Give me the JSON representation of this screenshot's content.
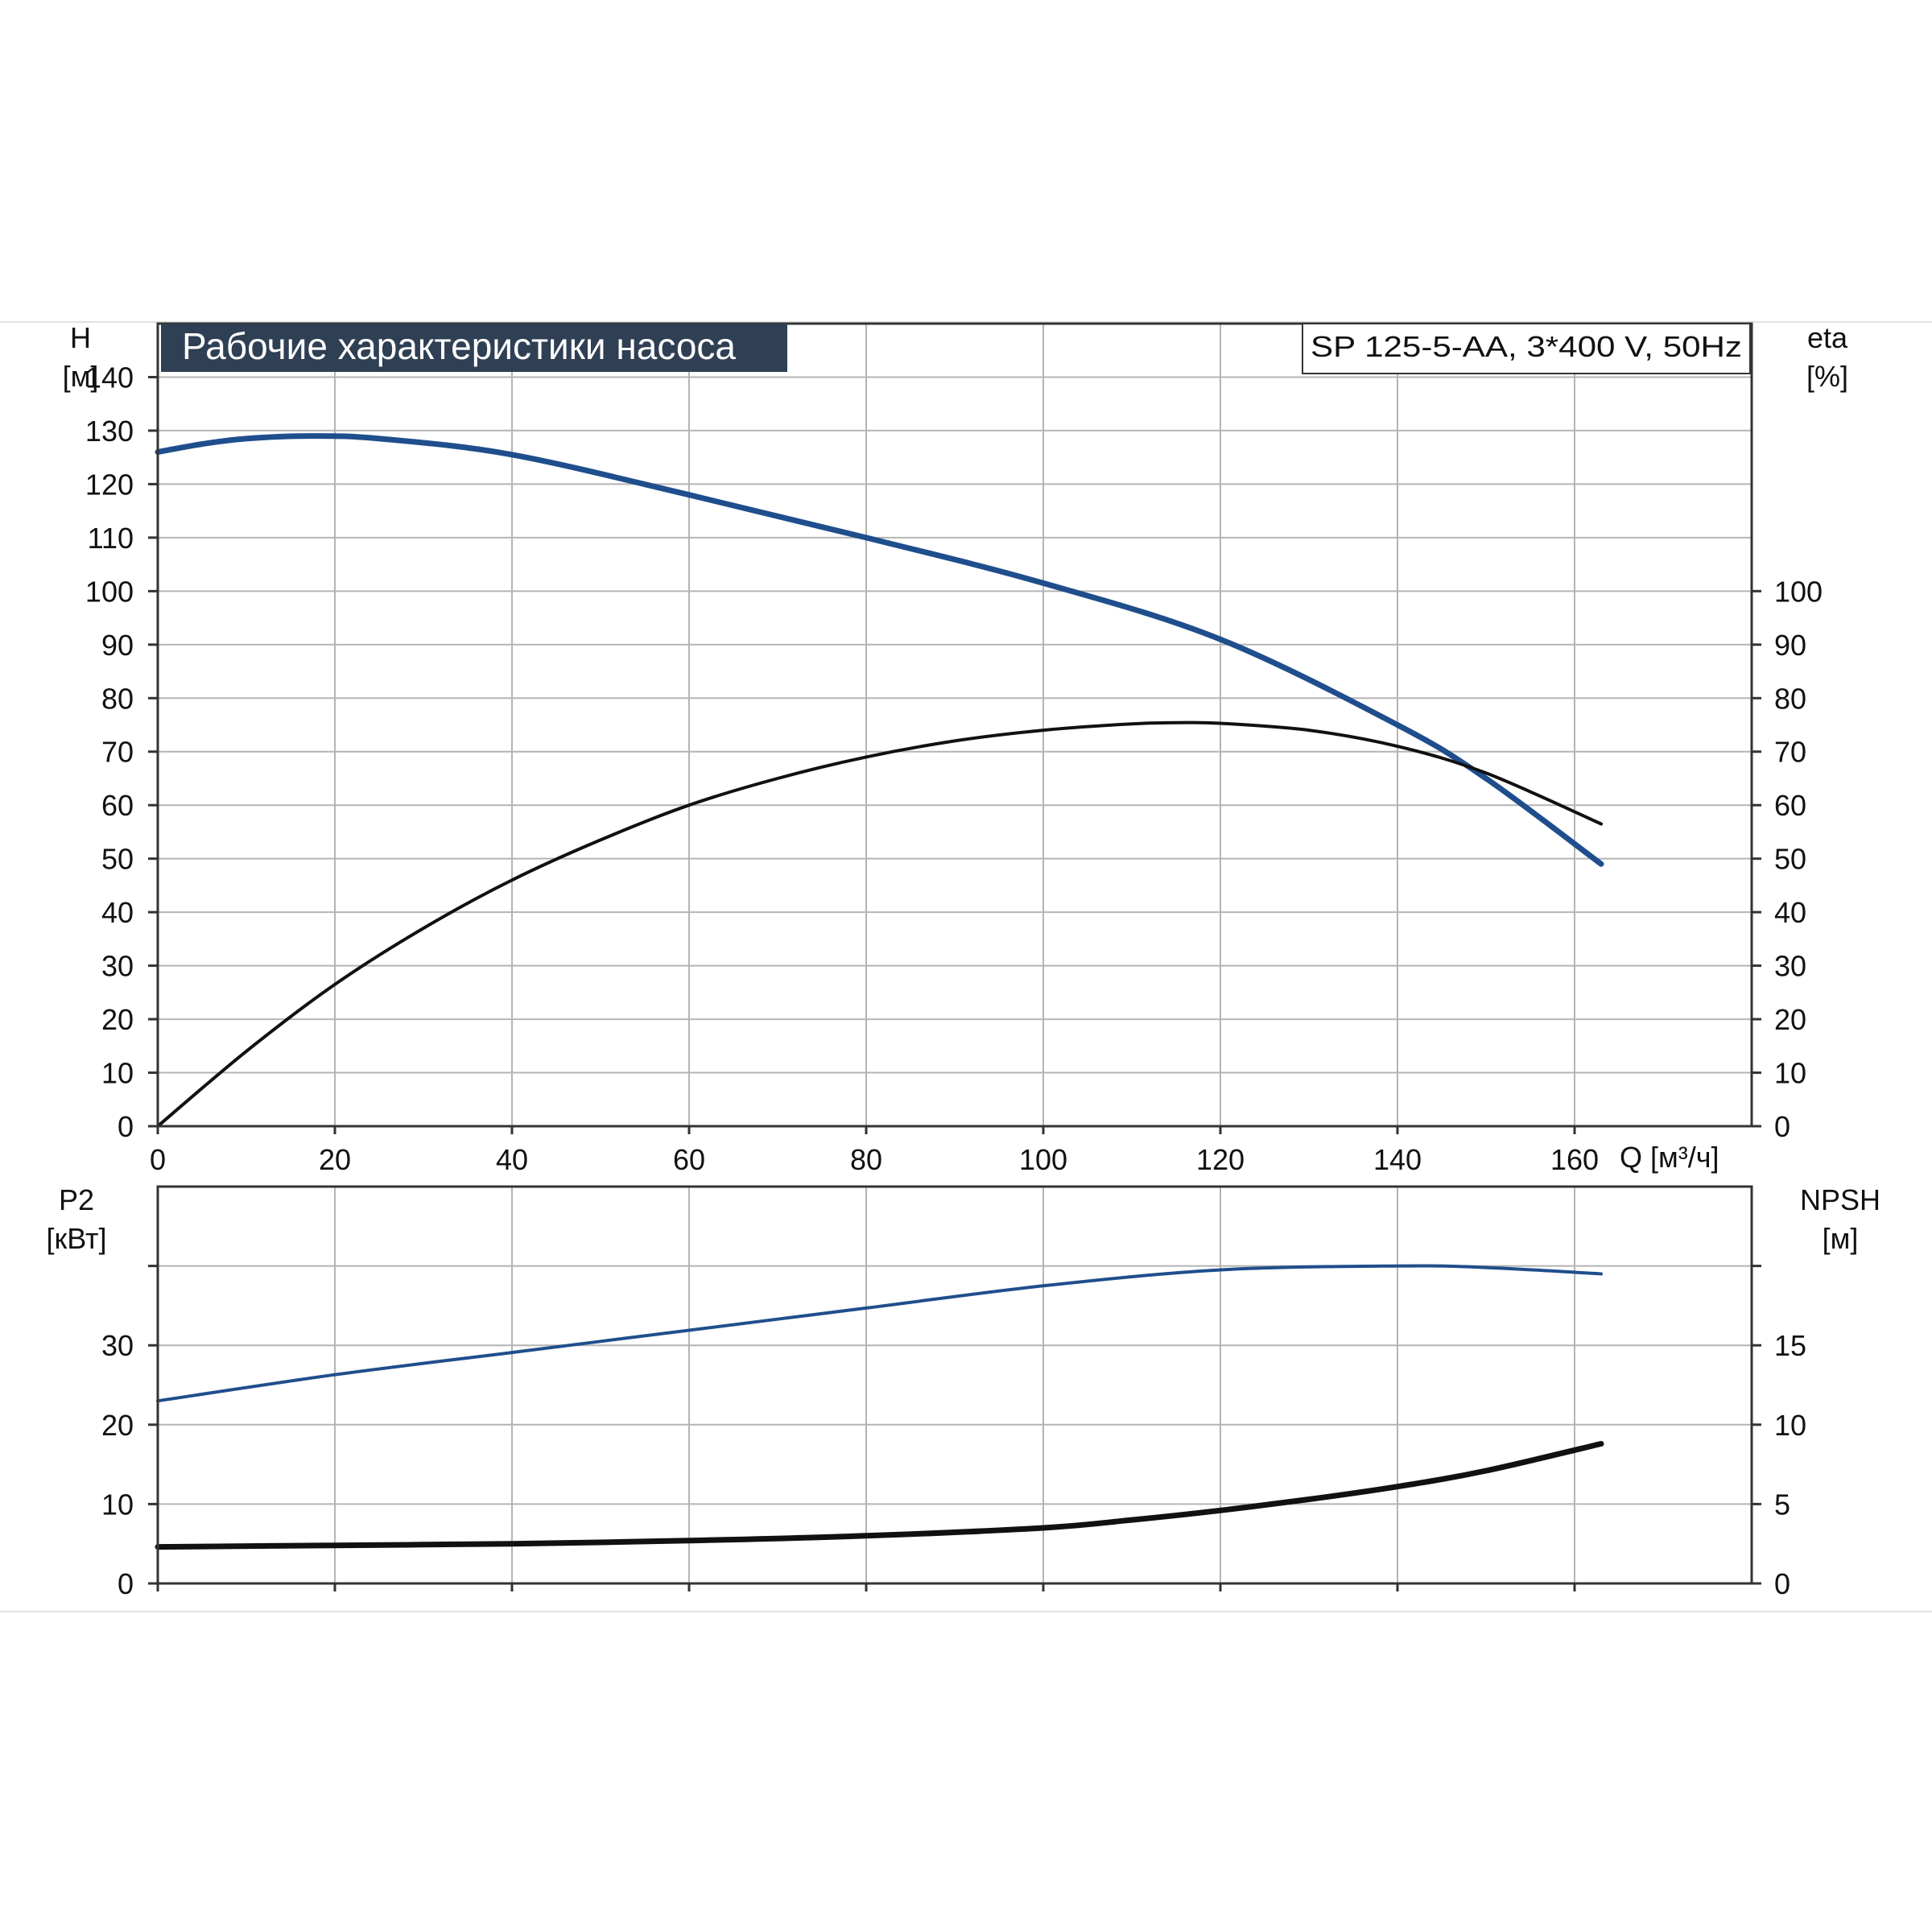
{
  "title": "Рабочие характеристики насоса",
  "model": "SP 125-5-AA, 3*400 V, 50Hz",
  "colors": {
    "blue": "#1f4e8c",
    "black": "#111111",
    "title_bg": "#2f3f54",
    "grid": "#b4b4b4"
  },
  "chart_data": [
    {
      "type": "line",
      "panel": "top",
      "x_axis": {
        "label": "Q [м³/ч]",
        "range": [
          0,
          180
        ],
        "ticks": [
          0,
          20,
          40,
          60,
          80,
          100,
          120,
          140,
          160
        ],
        "tick_labels": [
          "0",
          "20",
          "40",
          "60",
          "80",
          "100",
          "120",
          "140",
          "160"
        ]
      },
      "y_axis_left": {
        "label_top": "H",
        "label_unit": "[м]",
        "range": [
          0,
          150
        ],
        "ticks": [
          0,
          10,
          20,
          30,
          40,
          50,
          60,
          70,
          80,
          90,
          100,
          110,
          120,
          130,
          140
        ],
        "tick_labels": [
          "0",
          "10",
          "20",
          "30",
          "40",
          "50",
          "60",
          "70",
          "80",
          "90",
          "100",
          "110",
          "120",
          "130",
          "140"
        ]
      },
      "y_axis_right": {
        "label_top": "eta",
        "label_unit": "[%]",
        "range": [
          0,
          150
        ],
        "ticks": [
          0,
          10,
          20,
          30,
          40,
          50,
          60,
          70,
          80,
          90,
          100
        ],
        "tick_labels": [
          "0",
          "10",
          "20",
          "30",
          "40",
          "50",
          "60",
          "70",
          "80",
          "90",
          "100"
        ]
      },
      "grid": true,
      "series": [
        {
          "id": "H",
          "axis": "left",
          "color": "blue",
          "x": [
            0,
            5,
            10,
            17,
            25,
            40,
            60,
            80,
            100,
            120,
            140,
            150,
            163
          ],
          "y": [
            126,
            127.5,
            128.5,
            129,
            128.5,
            125.5,
            118,
            110,
            101.5,
            91,
            75,
            65,
            49
          ]
        },
        {
          "id": "eta",
          "axis": "right",
          "color": "black",
          "x": [
            0,
            10,
            20,
            30,
            40,
            50,
            60,
            70,
            80,
            90,
            100,
            110,
            115,
            120,
            130,
            140,
            150,
            163
          ],
          "y": [
            0,
            14,
            26.5,
            37,
            46,
            53.5,
            60,
            65,
            69,
            72,
            74,
            75.2,
            75.4,
            75.3,
            74,
            71,
            66,
            56.5
          ]
        }
      ]
    },
    {
      "type": "line",
      "panel": "bottom",
      "x_axis": {
        "range": [
          0,
          180
        ],
        "ticks": [
          0,
          20,
          40,
          60,
          80,
          100,
          120,
          140,
          160
        ]
      },
      "y_axis_left": {
        "label_top": "P2",
        "label_unit": "[кВт]",
        "range": [
          0,
          50
        ],
        "ticks": [
          0,
          10,
          20,
          30,
          40
        ],
        "tick_labels": [
          "0",
          "10",
          "20",
          "30",
          ""
        ]
      },
      "y_axis_right": {
        "label_top": "NPSH",
        "label_unit": "[м]",
        "range": [
          0,
          25
        ],
        "ticks": [
          0,
          5,
          10,
          15,
          20
        ],
        "tick_labels": [
          "0",
          "5",
          "10",
          "15",
          ""
        ]
      },
      "grid": true,
      "series": [
        {
          "id": "P2",
          "axis": "left",
          "color": "blue",
          "x": [
            0,
            20,
            40,
            60,
            80,
            100,
            120,
            140,
            150,
            163
          ],
          "y": [
            23,
            26.3,
            29.1,
            31.9,
            34.7,
            37.5,
            39.5,
            40,
            39.8,
            39
          ]
        },
        {
          "id": "NPSH",
          "axis": "right",
          "color": "black",
          "x": [
            0,
            20,
            40,
            60,
            80,
            100,
            110,
            120,
            130,
            140,
            150,
            163
          ],
          "y": [
            2.3,
            2.4,
            2.5,
            2.7,
            3.0,
            3.5,
            4.0,
            4.6,
            5.3,
            6.1,
            7.1,
            8.8
          ]
        }
      ]
    }
  ]
}
